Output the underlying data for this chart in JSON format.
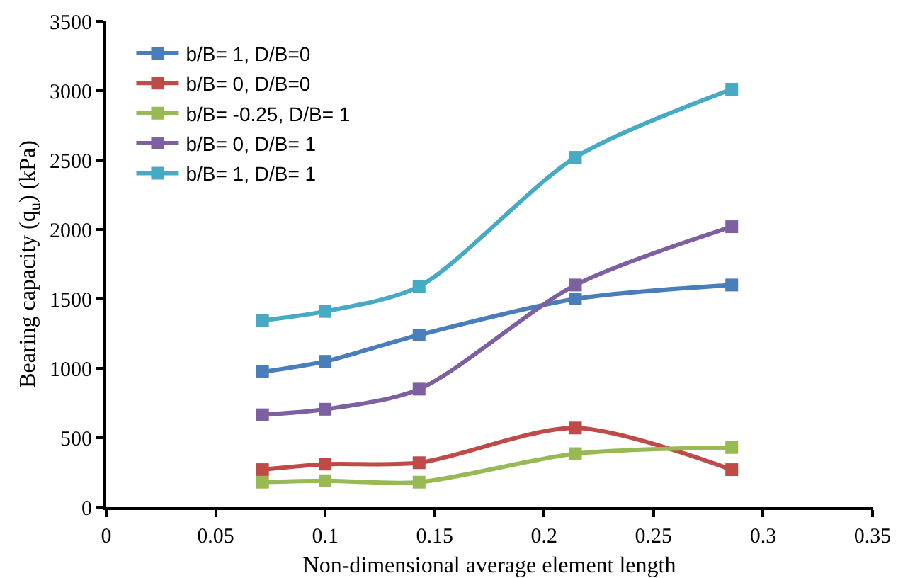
{
  "chart_data": {
    "type": "line",
    "xlabel": "Non-dimensional average element length",
    "ylabel": "Bearing capacity (q$_{u}$) (kPa)",
    "x": [
      0.0714,
      0.1,
      0.1429,
      0.2143,
      0.2857
    ],
    "series": [
      {
        "name": "b/B= 1, D/B=0",
        "color": "#4a7ebb",
        "values": [
          975,
          1050,
          1240,
          1500,
          1600
        ]
      },
      {
        "name": "b/B= 0, D/B=0",
        "color": "#be4b48",
        "values": [
          270,
          310,
          320,
          570,
          270
        ]
      },
      {
        "name": "b/B= -0.25, D/B= 1",
        "color": "#98b954",
        "values": [
          180,
          190,
          180,
          385,
          430
        ]
      },
      {
        "name": "b/B= 0, D/B= 1",
        "color": "#7d60a0",
        "values": [
          665,
          705,
          850,
          1600,
          2020
        ]
      },
      {
        "name": "b/B= 1, D/B= 1",
        "color": "#46aac5",
        "values": [
          1345,
          1410,
          1590,
          2520,
          3010
        ]
      }
    ],
    "xlim": [
      0,
      0.35
    ],
    "xticks": [
      0,
      0.05,
      0.1,
      0.15,
      0.2,
      0.25,
      0.3,
      0.35
    ],
    "ylim": [
      0,
      3500
    ],
    "yticks": [
      0,
      500,
      1000,
      1500,
      2000,
      2500,
      3000,
      3500
    ],
    "grid": false,
    "legend": "top left",
    "marker": "square",
    "line_style": "solid"
  }
}
